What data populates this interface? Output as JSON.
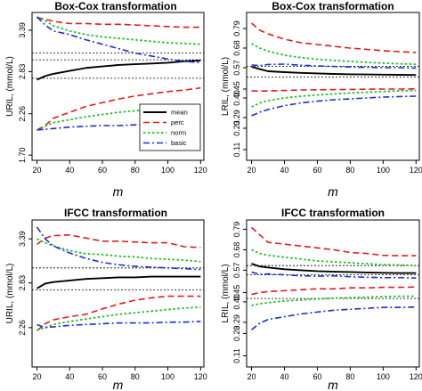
{
  "colors": {
    "mean": "#000000",
    "perc": "#e31a1c",
    "norm": "#1fbf1f",
    "basic": "#1a2ed6",
    "reference": "#000000"
  },
  "chart_data": [
    {
      "type": "line",
      "title": "Box-Cox transformation",
      "xlabel": "m",
      "ylabel": "URIL, (mmol/L)",
      "x": [
        20,
        25,
        30,
        40,
        50,
        60,
        70,
        80,
        90,
        100,
        110,
        120
      ],
      "xticks": [
        "20",
        "40",
        "60",
        "80",
        "100",
        "120"
      ],
      "yticks": [
        "1.70",
        "2.26",
        "2.83",
        "3.39"
      ],
      "xlim": [
        17,
        122
      ],
      "ylim": [
        1.63,
        3.63
      ],
      "reference_lines": [
        3.08,
        2.99,
        2.74
      ],
      "legend": {
        "position": "right, lower-middle",
        "entries": [
          "mean",
          "perc",
          "norm",
          "basic"
        ]
      },
      "series": [
        {
          "name": "mean",
          "upper": [
            2.72,
            2.77,
            2.8,
            2.84,
            2.88,
            2.9,
            2.92,
            2.93,
            2.94,
            2.95,
            2.97,
            2.98
          ]
        },
        {
          "name": "perc",
          "upper": [
            3.56,
            3.54,
            3.51,
            3.48,
            3.48,
            3.47,
            3.47,
            3.46,
            3.45,
            3.44,
            3.43,
            3.43
          ],
          "lower": [
            2.04,
            2.1,
            2.2,
            2.28,
            2.36,
            2.41,
            2.46,
            2.5,
            2.53,
            2.56,
            2.58,
            2.61
          ]
        },
        {
          "name": "norm",
          "upper": [
            3.57,
            3.52,
            3.45,
            3.38,
            3.33,
            3.3,
            3.28,
            3.26,
            3.24,
            3.22,
            3.21,
            3.2
          ],
          "lower": [
            2.04,
            2.09,
            2.14,
            2.18,
            2.22,
            2.25,
            2.28,
            2.3,
            2.32,
            2.34,
            2.35,
            2.36
          ]
        },
        {
          "name": "basic",
          "upper": [
            3.57,
            3.46,
            3.38,
            3.33,
            3.26,
            3.2,
            3.14,
            3.08,
            3.04,
            3.0,
            2.97,
            2.95
          ],
          "lower": [
            2.04,
            2.05,
            2.06,
            2.08,
            2.09,
            2.1,
            2.1,
            2.11,
            2.12,
            2.13,
            2.15,
            2.16
          ]
        }
      ]
    },
    {
      "type": "line",
      "title": "Box-Cox transformation",
      "xlabel": "m",
      "ylabel": "LRIL, (mmol/L)",
      "x": [
        20,
        25,
        30,
        40,
        50,
        60,
        70,
        80,
        90,
        100,
        110,
        120
      ],
      "xticks": [
        "20",
        "40",
        "60",
        "80",
        "100",
        "120"
      ],
      "yticks": [
        "0.11",
        "0.23",
        "0.29",
        "0.40",
        "0.45",
        "0.57",
        "0.68",
        "0.79"
      ],
      "xlim": [
        17,
        122
      ],
      "ylim": [
        0.05,
        0.88
      ],
      "reference_lines": [
        0.578,
        0.517
      ],
      "series": [
        {
          "name": "mean",
          "upper": [
            0.575,
            0.562,
            0.55,
            0.545,
            0.541,
            0.538,
            0.535,
            0.533,
            0.532,
            0.531,
            0.53,
            0.529
          ]
        },
        {
          "name": "perc",
          "upper": [
            0.82,
            0.78,
            0.76,
            0.73,
            0.71,
            0.7,
            0.69,
            0.68,
            0.673,
            0.665,
            0.66,
            0.655
          ],
          "lower": [
            0.44,
            0.438,
            0.44,
            0.442,
            0.445,
            0.446,
            0.447,
            0.448,
            0.449,
            0.45,
            0.45,
            0.451
          ]
        },
        {
          "name": "norm",
          "upper": [
            0.705,
            0.68,
            0.663,
            0.64,
            0.627,
            0.617,
            0.611,
            0.605,
            0.6,
            0.596,
            0.592,
            0.589
          ],
          "lower": [
            0.35,
            0.372,
            0.385,
            0.4,
            0.41,
            0.417,
            0.423,
            0.428,
            0.432,
            0.436,
            0.44,
            0.442
          ]
        },
        {
          "name": "basic",
          "upper": [
            0.585,
            0.582,
            0.588,
            0.59,
            0.584,
            0.58,
            0.577,
            0.574,
            0.572,
            0.57,
            0.57,
            0.568
          ],
          "lower": [
            0.3,
            0.32,
            0.335,
            0.357,
            0.372,
            0.382,
            0.39,
            0.395,
            0.4,
            0.405,
            0.408,
            0.41
          ]
        }
      ]
    },
    {
      "type": "line",
      "title": "IFCC transformation",
      "xlabel": "m",
      "ylabel": "URIL, (mmol/L)",
      "x": [
        20,
        25,
        30,
        40,
        50,
        60,
        70,
        80,
        90,
        100,
        110,
        120
      ],
      "xticks": [
        "20",
        "40",
        "60",
        "80",
        "100",
        "120"
      ],
      "yticks": [
        "2.26",
        "2.83",
        "3.39"
      ],
      "xlim": [
        17,
        122
      ],
      "ylim": [
        1.76,
        3.63
      ],
      "reference_lines": [
        3.02,
        2.74
      ],
      "series": [
        {
          "name": "mean",
          "upper": [
            2.76,
            2.82,
            2.84,
            2.86,
            2.88,
            2.89,
            2.9,
            2.9,
            2.91,
            2.91,
            2.91,
            2.91
          ]
        },
        {
          "name": "perc",
          "upper": [
            3.32,
            3.4,
            3.43,
            3.44,
            3.4,
            3.36,
            3.36,
            3.35,
            3.34,
            3.34,
            3.29,
            3.28
          ],
          "lower": [
            2.22,
            2.31,
            2.36,
            2.4,
            2.43,
            2.5,
            2.56,
            2.61,
            2.64,
            2.66,
            2.66,
            2.66
          ]
        },
        {
          "name": "norm",
          "upper": [
            3.39,
            3.34,
            3.3,
            3.24,
            3.2,
            3.19,
            3.17,
            3.16,
            3.14,
            3.13,
            3.12,
            3.1
          ],
          "lower": [
            2.23,
            2.26,
            2.3,
            2.34,
            2.37,
            2.4,
            2.43,
            2.45,
            2.47,
            2.49,
            2.51,
            2.52
          ]
        },
        {
          "name": "basic",
          "upper": [
            3.54,
            3.39,
            3.3,
            3.21,
            3.14,
            3.09,
            3.06,
            3.04,
            3.03,
            3.02,
            3.01,
            3.0
          ],
          "lower": [
            2.3,
            2.26,
            2.27,
            2.29,
            2.3,
            2.31,
            2.32,
            2.32,
            2.32,
            2.33,
            2.33,
            2.34
          ]
        }
      ]
    },
    {
      "type": "line",
      "title": "IFCC transformation",
      "xlabel": "m",
      "ylabel": "LRIL, (mmol/L)",
      "x": [
        20,
        25,
        30,
        40,
        50,
        60,
        70,
        80,
        90,
        100,
        110,
        120
      ],
      "xticks": [
        "20",
        "40",
        "60",
        "80",
        "100",
        "120"
      ],
      "yticks": [
        "0.11",
        "0.23",
        "0.29",
        "0.40",
        "0.45",
        "0.57",
        "0.68",
        "0.79"
      ],
      "xlim": [
        17,
        122
      ],
      "ylim": [
        0.05,
        0.84
      ],
      "reference_lines": [
        0.595,
        0.545,
        0.418
      ],
      "series": [
        {
          "name": "mean",
          "upper": [
            0.605,
            0.59,
            0.585,
            0.575,
            0.57,
            0.565,
            0.562,
            0.56,
            0.558,
            0.556,
            0.555,
            0.555
          ]
        },
        {
          "name": "perc",
          "upper": [
            0.8,
            0.76,
            0.72,
            0.71,
            0.7,
            0.69,
            0.68,
            0.665,
            0.66,
            0.65,
            0.648,
            0.648
          ],
          "lower": [
            0.44,
            0.45,
            0.455,
            0.46,
            0.465,
            0.47,
            0.47,
            0.475,
            0.475,
            0.478,
            0.478,
            0.48
          ]
        },
        {
          "name": "norm",
          "upper": [
            0.68,
            0.66,
            0.65,
            0.64,
            0.63,
            0.62,
            0.615,
            0.61,
            0.605,
            0.6,
            0.598,
            0.595
          ],
          "lower": [
            0.38,
            0.39,
            0.395,
            0.405,
            0.41,
            0.415,
            0.42,
            0.422,
            0.425,
            0.428,
            0.43,
            0.43
          ]
        },
        {
          "name": "basic",
          "upper": [
            0.56,
            0.548,
            0.55,
            0.545,
            0.54,
            0.538,
            0.54,
            0.535,
            0.532,
            0.53,
            0.53,
            0.528
          ],
          "lower": [
            0.25,
            0.285,
            0.305,
            0.32,
            0.335,
            0.345,
            0.355,
            0.36,
            0.365,
            0.37,
            0.37,
            0.372
          ]
        }
      ]
    }
  ]
}
